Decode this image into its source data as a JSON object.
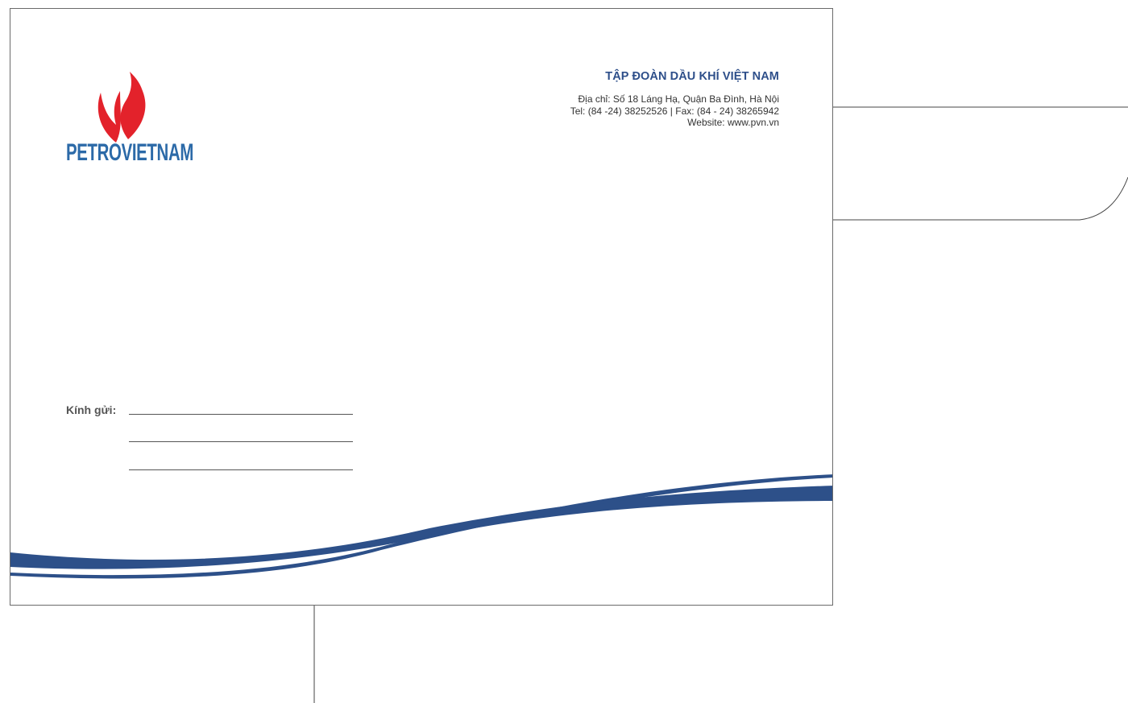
{
  "logo": {
    "text": "PETROVIETNAM",
    "flame_color": "#e3222b",
    "text_color": "#2c6aa8"
  },
  "company": {
    "name": "TẬP ĐOÀN DẦU KHÍ VIỆT NAM",
    "address": "Địa chỉ: Số 18 Láng Hạ, Quận Ba Đình, Hà Nội",
    "phone_fax": "Tel: (84 -24) 38252526 | Fax: (84 - 24) 38265942",
    "website": "Website: www.pvn.vn"
  },
  "recipient": {
    "label": "Kính gửi:"
  },
  "colors": {
    "wave": "#2d5089",
    "brand_blue": "#2e4f8a",
    "frame": "#6b6b6b"
  }
}
